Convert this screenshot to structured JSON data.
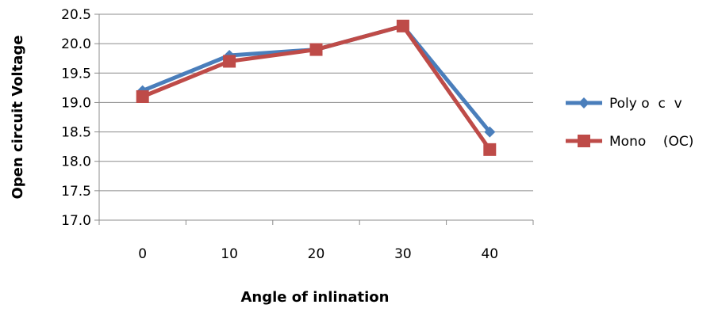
{
  "chart_data": {
    "type": "line",
    "title": "",
    "xlabel": "Angle of inlination",
    "ylabel": "Open circuit  Voltage",
    "x": [
      0,
      10,
      20,
      30,
      40
    ],
    "x_tick_labels": [
      "0",
      "10",
      "20",
      "30",
      "40"
    ],
    "y_tick_labels": [
      "17.0",
      "17.5",
      "18.0",
      "18.5",
      "19.0",
      "19.5",
      "20.0",
      "20.5"
    ],
    "ylim": [
      17.0,
      20.5
    ],
    "grid": "horizontal",
    "legend_position": "right",
    "series": [
      {
        "name": "Poly o  c  v",
        "values": [
          19.2,
          19.8,
          19.9,
          20.3,
          18.5
        ],
        "color": "#4a7ebb",
        "marker": "diamond"
      },
      {
        "name": "Mono    (OC)",
        "values": [
          19.1,
          19.7,
          19.9,
          20.3,
          18.2
        ],
        "color": "#be4b48",
        "marker": "square"
      }
    ]
  }
}
